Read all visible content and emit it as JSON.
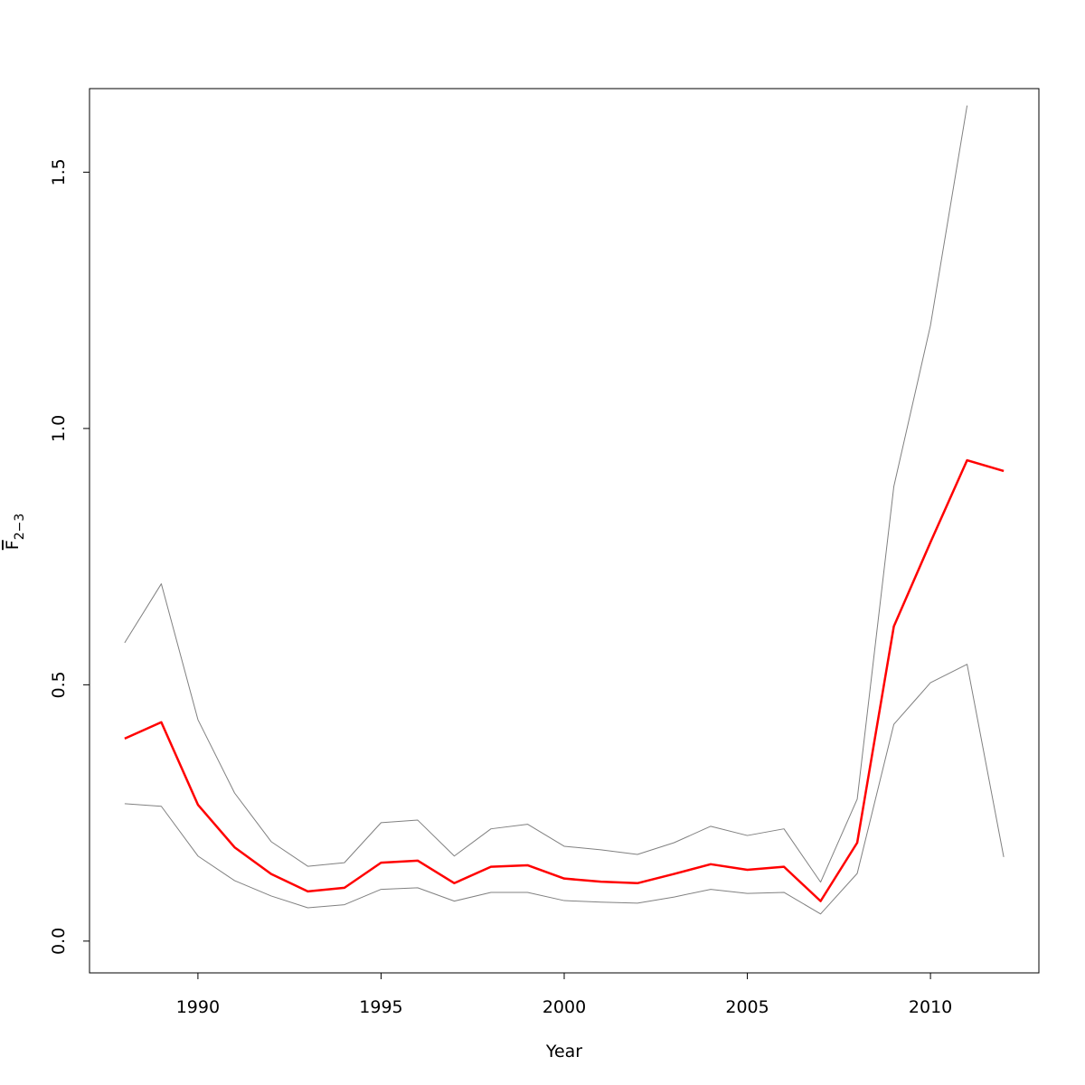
{
  "chart_data": {
    "type": "line",
    "xlabel": "Year",
    "ylabel": {
      "text": "F",
      "subscript": "2−3"
    },
    "x": [
      1988,
      1989,
      1990,
      1991,
      1992,
      1993,
      1994,
      1995,
      1996,
      1997,
      1998,
      1999,
      2000,
      2001,
      2002,
      2003,
      2004,
      2005,
      2006,
      2007,
      2008,
      2009,
      2010,
      2011,
      2012
    ],
    "series": [
      {
        "color": "#808080",
        "line_width": 1,
        "values": [
          0.582,
          0.697,
          0.432,
          0.289,
          0.194,
          0.146,
          0.153,
          0.231,
          0.236,
          0.166,
          0.219,
          0.228,
          0.185,
          0.178,
          0.169,
          0.192,
          0.224,
          0.206,
          0.219,
          0.115,
          0.277,
          0.887,
          1.201,
          1.63,
          null
        ]
      },
      {
        "color": "#808080",
        "line_width": 1,
        "values": [
          0.268,
          0.263,
          0.166,
          0.118,
          0.088,
          0.065,
          0.071,
          0.101,
          0.104,
          0.078,
          0.095,
          0.095,
          0.079,
          0.076,
          0.074,
          0.086,
          0.101,
          0.093,
          0.095,
          0.053,
          0.132,
          0.423,
          0.504,
          0.54,
          0.164
        ]
      },
      {
        "color": "#ff0000",
        "line_width": 2.5,
        "values": [
          0.395,
          0.427,
          0.266,
          0.183,
          0.131,
          0.097,
          0.104,
          0.153,
          0.157,
          0.113,
          0.145,
          0.148,
          0.122,
          0.116,
          0.113,
          0.131,
          0.15,
          0.139,
          0.145,
          0.078,
          0.192,
          0.614,
          0.778,
          0.938,
          0.917
        ]
      }
    ],
    "xlim": [
      1987.04,
      2012.96
    ],
    "ylim": [
      -0.062,
      1.663
    ],
    "xticks": [
      1990,
      1995,
      2000,
      2005,
      2010
    ],
    "yticks": [
      {
        "value": 0,
        "label": "0.0"
      },
      0.5,
      {
        "value": 1,
        "label": "1.0"
      },
      1.5
    ]
  }
}
